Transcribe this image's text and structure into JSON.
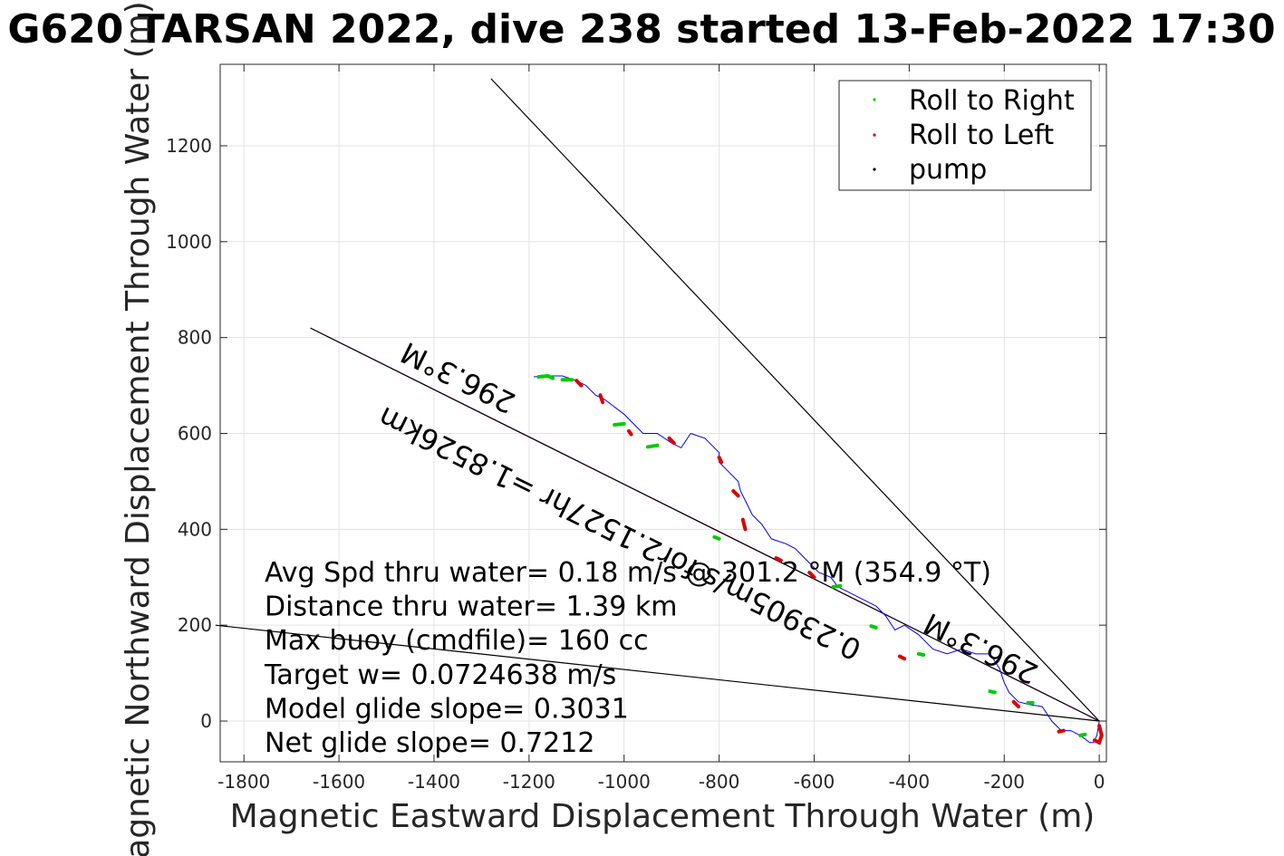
{
  "chart_data": {
    "type": "line",
    "title": "G620 TARSAN 2022, dive 238 started 13-Feb-2022 17:30",
    "xlabel": "Magnetic Eastward Displacement Through Water (m)",
    "ylabel": "Magnetic Northward Displacement Through Water (m)",
    "xlim": [
      -1850,
      15
    ],
    "ylim": [
      -85,
      1370
    ],
    "xticks": [
      -1800,
      -1600,
      -1400,
      -1200,
      -1000,
      -800,
      -600,
      -400,
      -200,
      0
    ],
    "yticks": [
      0,
      200,
      400,
      600,
      800,
      1000,
      1200
    ],
    "grid": true,
    "legend_position": "top-right",
    "legend": [
      {
        "label": "Roll to Right",
        "color": "#00cc00"
      },
      {
        "label": "Roll to Left",
        "color": "#dd0000"
      },
      {
        "label": "pump",
        "color": "#000000"
      }
    ],
    "series": [
      {
        "name": "track",
        "color": "#0000ff",
        "x": [
          0,
          -5,
          -12,
          -20,
          -40,
          -60,
          -80,
          -100,
          -120,
          -150,
          -170,
          -190,
          -200,
          -210,
          -230,
          -260,
          -290,
          -320,
          -350,
          -380,
          -410,
          -430,
          -450,
          -470,
          -490,
          -510,
          -530,
          -550,
          -565,
          -590,
          -620,
          -640,
          -660,
          -690,
          -710,
          -730,
          -740,
          -755,
          -760,
          -780,
          -800,
          -800,
          -830,
          -860,
          -880,
          -900,
          -930,
          -960,
          -980,
          -1000,
          -1040,
          -1060,
          -1080,
          -1100,
          -1130,
          -1160,
          -1190
        ],
        "y": [
          0,
          -30,
          -45,
          -45,
          -30,
          -20,
          -20,
          0,
          30,
          35,
          40,
          60,
          80,
          110,
          140,
          140,
          150,
          140,
          150,
          180,
          200,
          190,
          220,
          240,
          250,
          260,
          270,
          280,
          300,
          310,
          340,
          360,
          370,
          380,
          410,
          430,
          450,
          480,
          500,
          520,
          540,
          560,
          590,
          600,
          570,
          580,
          600,
          600,
          620,
          640,
          670,
          680,
          700,
          710,
          720,
          720,
          718
        ]
      }
    ],
    "roll_right_segments": [
      {
        "x": [
          -1180,
          -1160,
          -1150
        ],
        "y": [
          718,
          720,
          715
        ]
      },
      {
        "x": [
          -1130,
          -1110
        ],
        "y": [
          712,
          712
        ]
      },
      {
        "x": [
          -1020,
          -1000
        ],
        "y": [
          618,
          620
        ]
      },
      {
        "x": [
          -950,
          -930
        ],
        "y": [
          572,
          575
        ]
      },
      {
        "x": [
          -810,
          -800
        ],
        "y": [
          384,
          380
        ]
      },
      {
        "x": [
          -560,
          -545
        ],
        "y": [
          280,
          282
        ]
      },
      {
        "x": [
          -480,
          -470
        ],
        "y": [
          198,
          195
        ]
      },
      {
        "x": [
          -380,
          -370
        ],
        "y": [
          140,
          138
        ]
      },
      {
        "x": [
          -230,
          -220
        ],
        "y": [
          62,
          60
        ]
      },
      {
        "x": [
          -150,
          -140
        ],
        "y": [
          38,
          38
        ]
      },
      {
        "x": [
          -40,
          -30
        ],
        "y": [
          -30,
          -28
        ]
      }
    ],
    "roll_left_segments": [
      {
        "x": [
          -1100,
          -1090
        ],
        "y": [
          710,
          700
        ]
      },
      {
        "x": [
          -1050,
          -1045
        ],
        "y": [
          680,
          665
        ]
      },
      {
        "x": [
          -990,
          -985
        ],
        "y": [
          605,
          598
        ]
      },
      {
        "x": [
          -905,
          -895
        ],
        "y": [
          590,
          580
        ]
      },
      {
        "x": [
          -800,
          -795
        ],
        "y": [
          550,
          540
        ]
      },
      {
        "x": [
          -770,
          -760
        ],
        "y": [
          480,
          470
        ]
      },
      {
        "x": [
          -750,
          -745
        ],
        "y": [
          420,
          400
        ]
      },
      {
        "x": [
          -680,
          -670
        ],
        "y": [
          340,
          335
        ]
      },
      {
        "x": [
          -610,
          -600
        ],
        "y": [
          310,
          300
        ]
      },
      {
        "x": [
          -420,
          -410
        ],
        "y": [
          135,
          130
        ]
      },
      {
        "x": [
          -180,
          -170
        ],
        "y": [
          40,
          30
        ]
      },
      {
        "x": [
          -85,
          -75
        ],
        "y": [
          -22,
          -20
        ]
      },
      {
        "x": [
          0,
          5,
          0,
          -10
        ],
        "y": [
          -10,
          -30,
          -45,
          -40
        ]
      }
    ],
    "lines": [
      {
        "x": [
          0,
          -1660
        ],
        "y": [
          0,
          820
        ],
        "color": "#ff00ff"
      },
      {
        "x": [
          0,
          -1660
        ],
        "y": [
          0,
          820
        ],
        "color": "#000000"
      },
      {
        "x": [
          0,
          -1280
        ],
        "y": [
          0,
          1340
        ],
        "color": "#000000"
      },
      {
        "x": [
          0,
          -1860
        ],
        "y": [
          0,
          200
        ],
        "color": "#000000"
      }
    ],
    "annotations": [
      {
        "text": "296.3°M",
        "x": -1340,
        "y": 735,
        "rotate": 206.3
      },
      {
        "text": "0.23905m/s for2.1527hr =1.8526km",
        "x": -1000,
        "y": 410,
        "rotate": 206.3
      },
      {
        "text": "296.3°M",
        "x": -240,
        "y": 170,
        "rotate": 206.3
      }
    ],
    "stats": [
      "Avg Spd thru water=  0.18 m/s @ 301.2 °M (354.9 °T)",
      "Distance thru water=  1.39 km",
      "Max buoy (cmdfile)= 160 cc",
      "Target w= 0.0724638 m/s",
      "Model glide slope= 0.3031",
      "Net glide slope= 0.7212"
    ]
  }
}
